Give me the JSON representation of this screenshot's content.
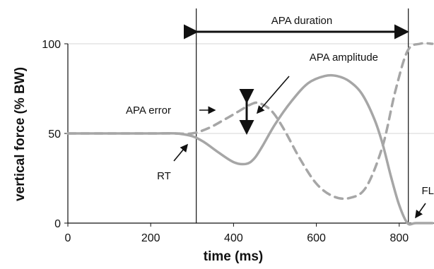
{
  "chart_data": {
    "type": "line",
    "xlabel": "time (ms)",
    "ylabel": "vertical force (% BW)",
    "xlim": [
      0,
      880
    ],
    "ylim": [
      0,
      100
    ],
    "x_ticks": [
      0,
      200,
      400,
      600,
      800
    ],
    "y_ticks": [
      0,
      50,
      100
    ],
    "grid": false,
    "series": [
      {
        "style": "solid",
        "color": "#a6a6a6",
        "x": [
          0,
          100,
          200,
          260,
          300,
          330,
          360,
          400,
          430,
          450,
          470,
          500,
          540,
          580,
          620,
          650,
          680,
          710,
          740,
          760,
          780,
          800,
          820,
          840,
          880
        ],
        "y": [
          50,
          50,
          50,
          50,
          48.5,
          45,
          40,
          34,
          33,
          36,
          43,
          55,
          68,
          78,
          82,
          82,
          79,
          72,
          58,
          44,
          26,
          10,
          0,
          0,
          0
        ]
      },
      {
        "style": "dashed",
        "color": "#a6a6a6",
        "x": [
          0,
          100,
          200,
          260,
          300,
          340,
          380,
          410,
          440,
          460,
          490,
          520,
          560,
          600,
          640,
          680,
          720,
          760,
          790,
          820,
          850,
          880
        ],
        "y": [
          50,
          50,
          50,
          50,
          50,
          53,
          58,
          62,
          66,
          67,
          63,
          53,
          36,
          22,
          15,
          14,
          20,
          43,
          73,
          96,
          100,
          100
        ]
      }
    ],
    "vertical_lines": [
      310,
      822
    ],
    "annotations": {
      "apa_duration": "APA duration",
      "apa_amplitude": "APA amplitude",
      "apa_error": "APA error",
      "rt": "RT",
      "fl": "FL"
    }
  }
}
